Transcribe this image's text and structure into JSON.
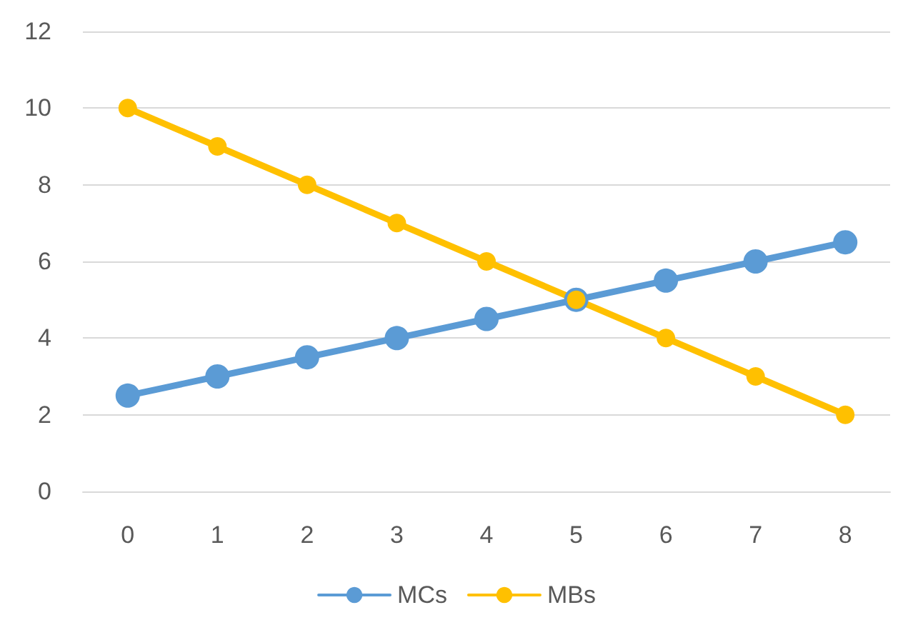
{
  "chart_data": {
    "type": "line",
    "categories": [
      "0",
      "1",
      "2",
      "3",
      "4",
      "5",
      "6",
      "7",
      "8"
    ],
    "series": [
      {
        "name": "MCs",
        "color": "#5b9bd5",
        "values": [
          2.5,
          3,
          3.5,
          4,
          4.5,
          5,
          5.5,
          6,
          6.5
        ]
      },
      {
        "name": "MBs",
        "color": "#ffc000",
        "values": [
          10,
          9,
          8,
          7,
          6,
          5,
          4,
          3,
          2
        ]
      }
    ],
    "ylim": [
      0,
      12
    ],
    "yticks": [
      0,
      2,
      4,
      6,
      8,
      10,
      12
    ],
    "grid": "y",
    "legend": "bottom",
    "marker": "circle",
    "line_style": "solid"
  }
}
